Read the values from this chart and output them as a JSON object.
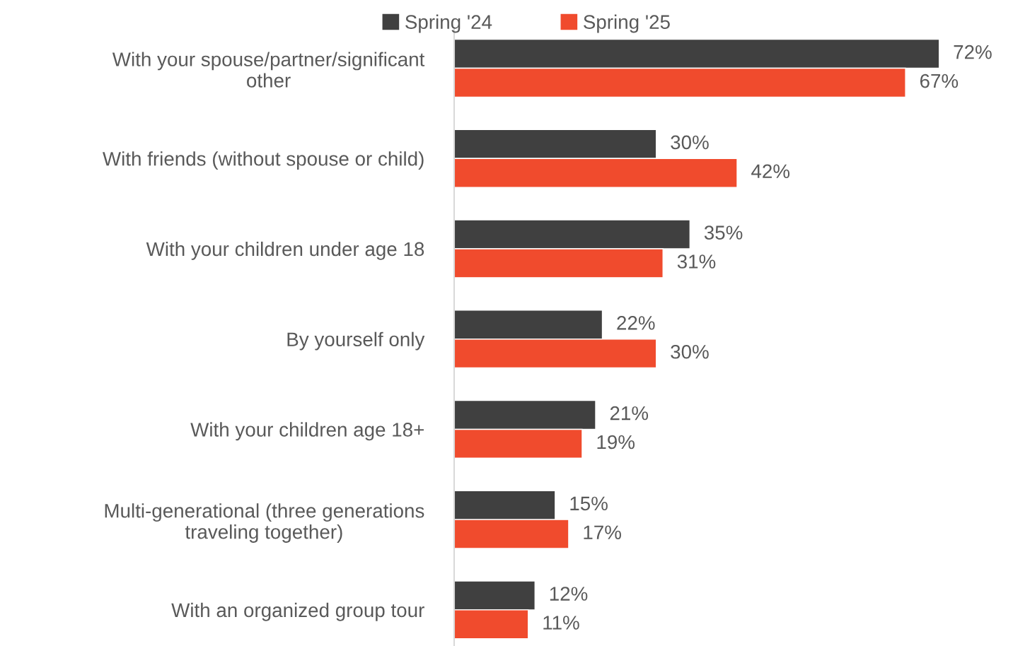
{
  "chart_data": {
    "type": "bar",
    "orientation": "horizontal",
    "categories": [
      "With your spouse/partner/significant\nother",
      "With friends (without spouse or child)",
      "With your children under age 18",
      "By yourself only",
      "With your children age 18+",
      "Multi-generational (three generations\ntraveling together)",
      "With an organized group tour"
    ],
    "series": [
      {
        "name": "Spring '24",
        "color": "#404040",
        "values": [
          72,
          30,
          35,
          22,
          21,
          15,
          12
        ],
        "value_labels": [
          "72%",
          "30%",
          "35%",
          "22%",
          "21%",
          "15%",
          "12%"
        ]
      },
      {
        "name": "Spring '25",
        "color": "#f04b2d",
        "values": [
          67,
          42,
          31,
          30,
          19,
          17,
          11
        ],
        "value_labels": [
          "67%",
          "42%",
          "31%",
          "30%",
          "19%",
          "17%",
          "11%"
        ]
      }
    ],
    "legend": "top",
    "tick_labels": "y"
  }
}
